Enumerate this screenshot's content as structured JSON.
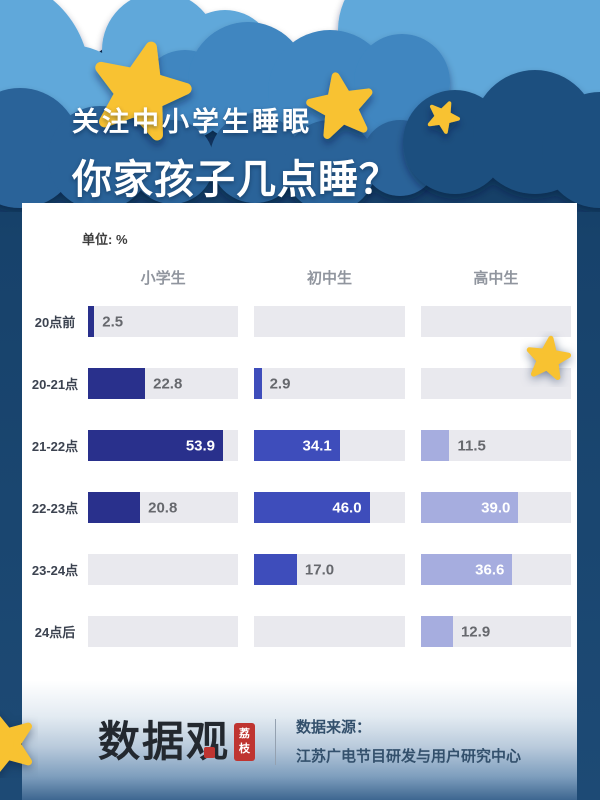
{
  "page": {
    "title_line1": "关注中小学生睡眠",
    "title_line2": "你家孩子几点睡？"
  },
  "chart_data": {
    "type": "bar",
    "orientation": "horizontal",
    "unit_label": "单位: %",
    "categories": [
      "20点前",
      "20-21点",
      "21-22点",
      "22-23点",
      "23-24点",
      "24点后"
    ],
    "series": [
      {
        "name": "小学生",
        "color": "#29308c",
        "values": [
          2.5,
          22.8,
          53.9,
          20.8,
          null,
          null
        ]
      },
      {
        "name": "初中生",
        "color": "#3e4dbb",
        "values": [
          null,
          2.9,
          34.1,
          46.0,
          17.0,
          null
        ]
      },
      {
        "name": "高中生",
        "color": "#a6addf",
        "values": [
          null,
          null,
          11.5,
          39.0,
          36.6,
          12.9
        ]
      }
    ],
    "xmax": 60,
    "inside_label_threshold": 33,
    "track_color": "#e9e9ee",
    "value_color_outside": "#66686d",
    "value_color_inside": "#ffffff",
    "grid": false,
    "legend_position": "column-headers-top"
  },
  "footer": {
    "logo_text": "数据观",
    "logo_badge": "荔枝",
    "source_label": "数据来源：",
    "source_name": "江苏广电节目研发与用户研究中心"
  },
  "colors": {
    "background_navy": "#1d4a75",
    "card_white": "#ffffff",
    "star_yellow": "#f8c231",
    "cloud_white": "#ffffff",
    "cloud_lightest": "#9ecdec",
    "cloud_light": "#60a8da",
    "cloud_medium": "#3f86c0",
    "cloud_deep": "#2b6399",
    "cloud_darkest": "#1d507f",
    "seal_red": "#bf3430"
  }
}
